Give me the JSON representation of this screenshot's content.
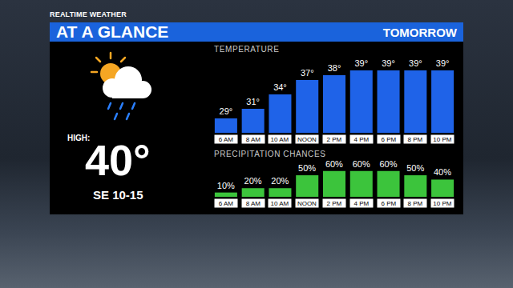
{
  "header": {
    "brand": "REALTIME WEATHER",
    "title": "AT A GLANCE",
    "period": "TOMORROW"
  },
  "summary": {
    "high_label": "HIGH:",
    "high": "40°",
    "wind": "SE 10-15"
  },
  "chart_data": [
    {
      "type": "bar",
      "title": "TEMPERATURE",
      "categories": [
        "6 AM",
        "8 AM",
        "10 AM",
        "NOON",
        "2 PM",
        "4 PM",
        "6 PM",
        "8 PM",
        "10 PM"
      ],
      "values": [
        29,
        31,
        34,
        37,
        38,
        39,
        39,
        39,
        39
      ],
      "value_labels": [
        "29°",
        "31°",
        "34°",
        "37°",
        "38°",
        "39°",
        "39°",
        "39°",
        "39°"
      ],
      "data_labels": true,
      "color": "#1f63e8",
      "ylim": [
        26,
        40
      ],
      "tick_labels": "x",
      "grid": false
    },
    {
      "type": "bar",
      "title": "PRECIPITATION CHANCES",
      "categories": [
        "6 AM",
        "8 AM",
        "10 AM",
        "NOON",
        "2 PM",
        "4 PM",
        "6 PM",
        "8 PM",
        "10 PM"
      ],
      "values": [
        10,
        20,
        20,
        50,
        60,
        60,
        60,
        50,
        40
      ],
      "value_labels": [
        "10%",
        "20%",
        "20%",
        "50%",
        "60%",
        "60%",
        "60%",
        "50%",
        "40%"
      ],
      "data_labels": true,
      "color": "#3cc43c",
      "ylim": [
        0,
        65
      ],
      "tick_labels": "x",
      "grid": false
    }
  ]
}
